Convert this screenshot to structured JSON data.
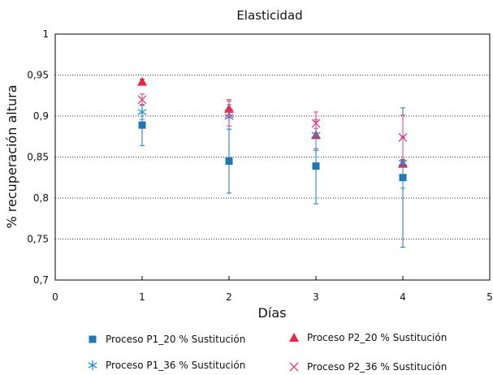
{
  "chart_data": {
    "type": "scatter",
    "title": "Elasticidad",
    "xlabel": "Días",
    "ylabel": "% recuperación altura",
    "xlim": [
      0,
      5
    ],
    "ylim": [
      0.7,
      1
    ],
    "x_ticks": [
      0,
      1,
      2,
      3,
      4,
      5
    ],
    "x_tick_labels": [
      "0",
      "1",
      "2",
      "3",
      "4",
      "5"
    ],
    "y_ticks": [
      0.7,
      0.75,
      0.8,
      0.85,
      0.9,
      0.95,
      1
    ],
    "y_tick_labels": [
      "0,7",
      "0,75",
      "0,8",
      "0,85",
      "0,9",
      "0,95",
      "1"
    ],
    "grid": "horizontal-dotted",
    "legend_position": "bottom",
    "series": [
      {
        "name": "Proceso P1_20 % Sustitución",
        "marker": "square",
        "color": "#1f77b4",
        "x": [
          1,
          2,
          3,
          4
        ],
        "y": [
          0.889,
          0.845,
          0.839,
          0.825
        ],
        "err_low": [
          0.864,
          0.806,
          0.793,
          0.74
        ],
        "err_high": [
          0.914,
          0.884,
          0.885,
          0.91
        ]
      },
      {
        "name": "Proceso P2_20 % Sustitución",
        "marker": "triangle",
        "color": "#e8254a",
        "x": [
          1,
          2,
          3,
          4
        ],
        "y": [
          0.942,
          0.909,
          0.877,
          0.842
        ],
        "err_low": [
          0.94,
          0.898,
          0.86,
          0.838
        ],
        "err_high": [
          0.945,
          0.92,
          0.894,
          0.846
        ]
      },
      {
        "name": "Proceso P1_36 % Sustitución",
        "marker": "asterisk",
        "color": "#1f8fd6",
        "x": [
          1,
          2,
          3,
          4
        ],
        "y": [
          0.905,
          0.899,
          0.877,
          0.843
        ],
        "err_low": [
          0.896,
          0.884,
          0.858,
          0.812
        ],
        "err_high": [
          0.914,
          0.914,
          0.896,
          0.874
        ]
      },
      {
        "name": "Proceso P2_36 % Sustitución",
        "marker": "x",
        "color": "#e0407a",
        "x": [
          1,
          2,
          3,
          4
        ],
        "y": [
          0.92,
          0.903,
          0.891,
          0.874
        ],
        "err_low": [
          0.913,
          0.888,
          0.877,
          0.847
        ],
        "err_high": [
          0.927,
          0.918,
          0.905,
          0.901
        ]
      }
    ]
  }
}
